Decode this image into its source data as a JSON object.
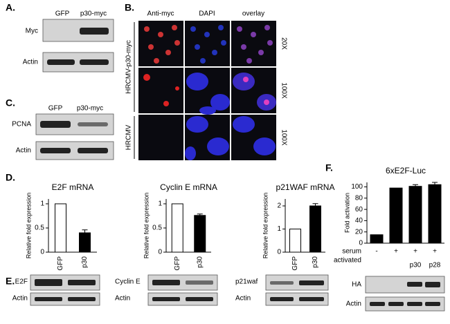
{
  "panels": {
    "a": {
      "label": "A.",
      "lanes": [
        "GFP",
        "p30-myc"
      ],
      "rows": [
        "Myc",
        "Actin"
      ]
    },
    "b": {
      "label": "B.",
      "columns": [
        "Anti-myc",
        "DAPI",
        "overlay"
      ],
      "magnifications": [
        "20X",
        "100X",
        "100X"
      ],
      "groups": [
        "HRCMV-p30-myc",
        "HRCMV"
      ]
    },
    "c": {
      "label": "C.",
      "lanes": [
        "GFP",
        "p30-myc"
      ],
      "rows": [
        "PCNA",
        "Actin"
      ]
    },
    "d": {
      "label": "D."
    },
    "e": {
      "label": "E.",
      "blots": [
        [
          "E2F",
          "Actin"
        ],
        [
          "Cyclin E",
          "Actin"
        ],
        [
          "p21waf",
          "Actin"
        ]
      ]
    },
    "f": {
      "label": "F.",
      "row_labels": [
        "serum",
        "activated"
      ],
      "serum": [
        "-",
        "+",
        "+",
        "+"
      ],
      "activated": [
        "p30",
        "p28"
      ],
      "blots": [
        "HA",
        "Actin"
      ]
    }
  },
  "chart_data": [
    {
      "type": "bar",
      "title": "E2F mRNA",
      "y_label": "Relative fold expression",
      "categories": [
        "GFP",
        "p30"
      ],
      "values": [
        1,
        0.4
      ],
      "errors": [
        null,
        0.06
      ],
      "colors": [
        "#ffffff",
        "#000000"
      ],
      "ylim": [
        0,
        1.1
      ],
      "yticks": [
        0,
        0.5,
        1
      ]
    },
    {
      "type": "bar",
      "title": "Cyclin E mRNA",
      "y_label": "Relative fold expression",
      "categories": [
        "GFP",
        "p30"
      ],
      "values": [
        1,
        0.76
      ],
      "errors": [
        null,
        0.03
      ],
      "colors": [
        "#ffffff",
        "#000000"
      ],
      "ylim": [
        0,
        1.1
      ],
      "yticks": [
        0,
        0.5,
        1
      ]
    },
    {
      "type": "bar",
      "title": "p21WAF mRNA",
      "y_label": "Relative fold expression",
      "categories": [
        "GFP",
        "p30"
      ],
      "values": [
        1,
        2.0
      ],
      "errors": [
        null,
        0.1
      ],
      "colors": [
        "#ffffff",
        "#000000"
      ],
      "ylim": [
        0,
        2.3
      ],
      "yticks": [
        0,
        1,
        2
      ]
    },
    {
      "type": "bar",
      "title": "6xE2F-Luc",
      "y_label": "Fold activation",
      "categories": [
        null,
        null,
        null,
        null
      ],
      "values": [
        15,
        98,
        101,
        104
      ],
      "errors": [
        null,
        null,
        3,
        4
      ],
      "colors": [
        "#000000",
        "#000000",
        "#000000",
        "#000000"
      ],
      "ylim": [
        0,
        108
      ],
      "yticks": [
        0,
        20,
        40,
        60,
        80,
        100
      ]
    }
  ]
}
